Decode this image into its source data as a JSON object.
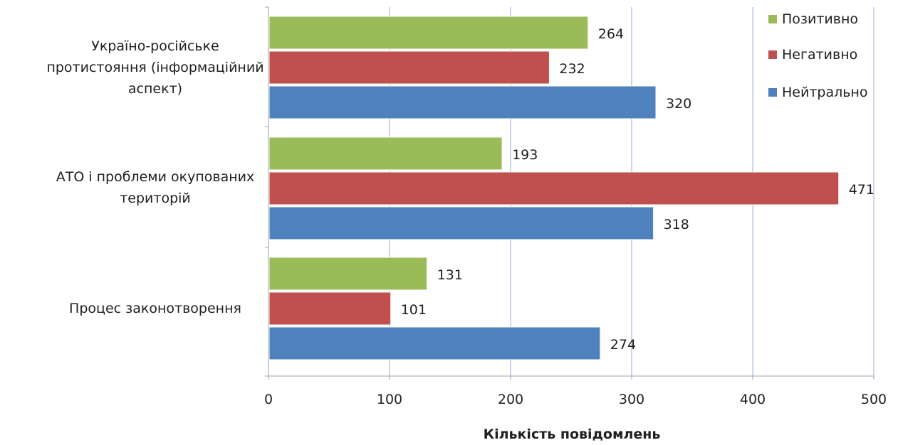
{
  "chart_data": {
    "type": "bar",
    "orientation": "horizontal",
    "categories": [
      [
        "Україно-російське",
        "протистояння (інформаційний",
        "аспект)"
      ],
      [
        "АТО і проблеми окупованих",
        "територій"
      ],
      [
        "Процес законотворення"
      ]
    ],
    "series": [
      {
        "name": "Позитивно",
        "color": "#9bbb59",
        "values": [
          264,
          193,
          131
        ]
      },
      {
        "name": "Негативно",
        "color": "#c0504d",
        "values": [
          232,
          471,
          101
        ]
      },
      {
        "name": "Нейтрально",
        "color": "#4f81bd",
        "values": [
          320,
          318,
          274
        ]
      }
    ],
    "xlabel": "Кількість повідомлень",
    "xlim": [
      0,
      500
    ],
    "xticks": [
      0,
      100,
      200,
      300,
      400,
      500
    ],
    "grid": "vertical",
    "legend_position": "top-right",
    "colors": {
      "gridline": "#b9c9e3",
      "axis": "#a0a0a0"
    }
  }
}
